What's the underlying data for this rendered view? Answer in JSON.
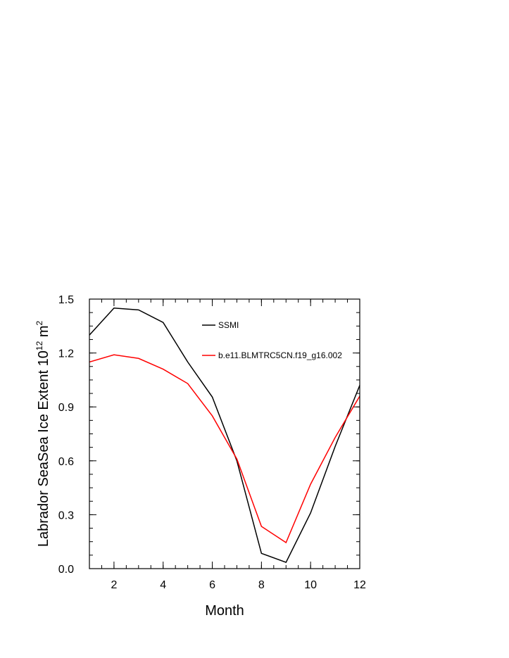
{
  "chart_data": {
    "type": "line",
    "xlabel": "Month",
    "ylabel_main": "Labrador SeaSea Ice Extent 10",
    "ylabel_exp1": "12",
    "ylabel_unit": " m",
    "ylabel_exp2": "2",
    "xlim": [
      1,
      12
    ],
    "ylim": [
      0.0,
      1.5
    ],
    "x_ticks": [
      2,
      4,
      6,
      8,
      10,
      12
    ],
    "x_tick_labels": [
      "2",
      "4",
      "6",
      "8",
      "10",
      "12"
    ],
    "y_ticks": [
      0.0,
      0.3,
      0.6,
      0.9,
      1.2,
      1.5
    ],
    "y_tick_labels": [
      "0.0",
      "0.3",
      "0.6",
      "0.9",
      "1.2",
      "1.5"
    ],
    "grid": false,
    "legend_position": "top-right",
    "x": [
      1,
      2,
      3,
      4,
      5,
      6,
      7,
      8,
      9,
      10,
      11,
      12
    ],
    "series": [
      {
        "name": "SSMI",
        "color": "#000000",
        "values": [
          1.3,
          1.45,
          1.44,
          1.37,
          1.15,
          0.955,
          0.6,
          0.085,
          0.035,
          0.31,
          0.68,
          1.02
        ]
      },
      {
        "name": "b.e11.BLMTRC5CN.f19_g16.002",
        "color": "#ff0000",
        "values": [
          1.15,
          1.19,
          1.17,
          1.11,
          1.03,
          0.85,
          0.61,
          0.235,
          0.145,
          0.47,
          0.73,
          0.96
        ]
      }
    ]
  }
}
